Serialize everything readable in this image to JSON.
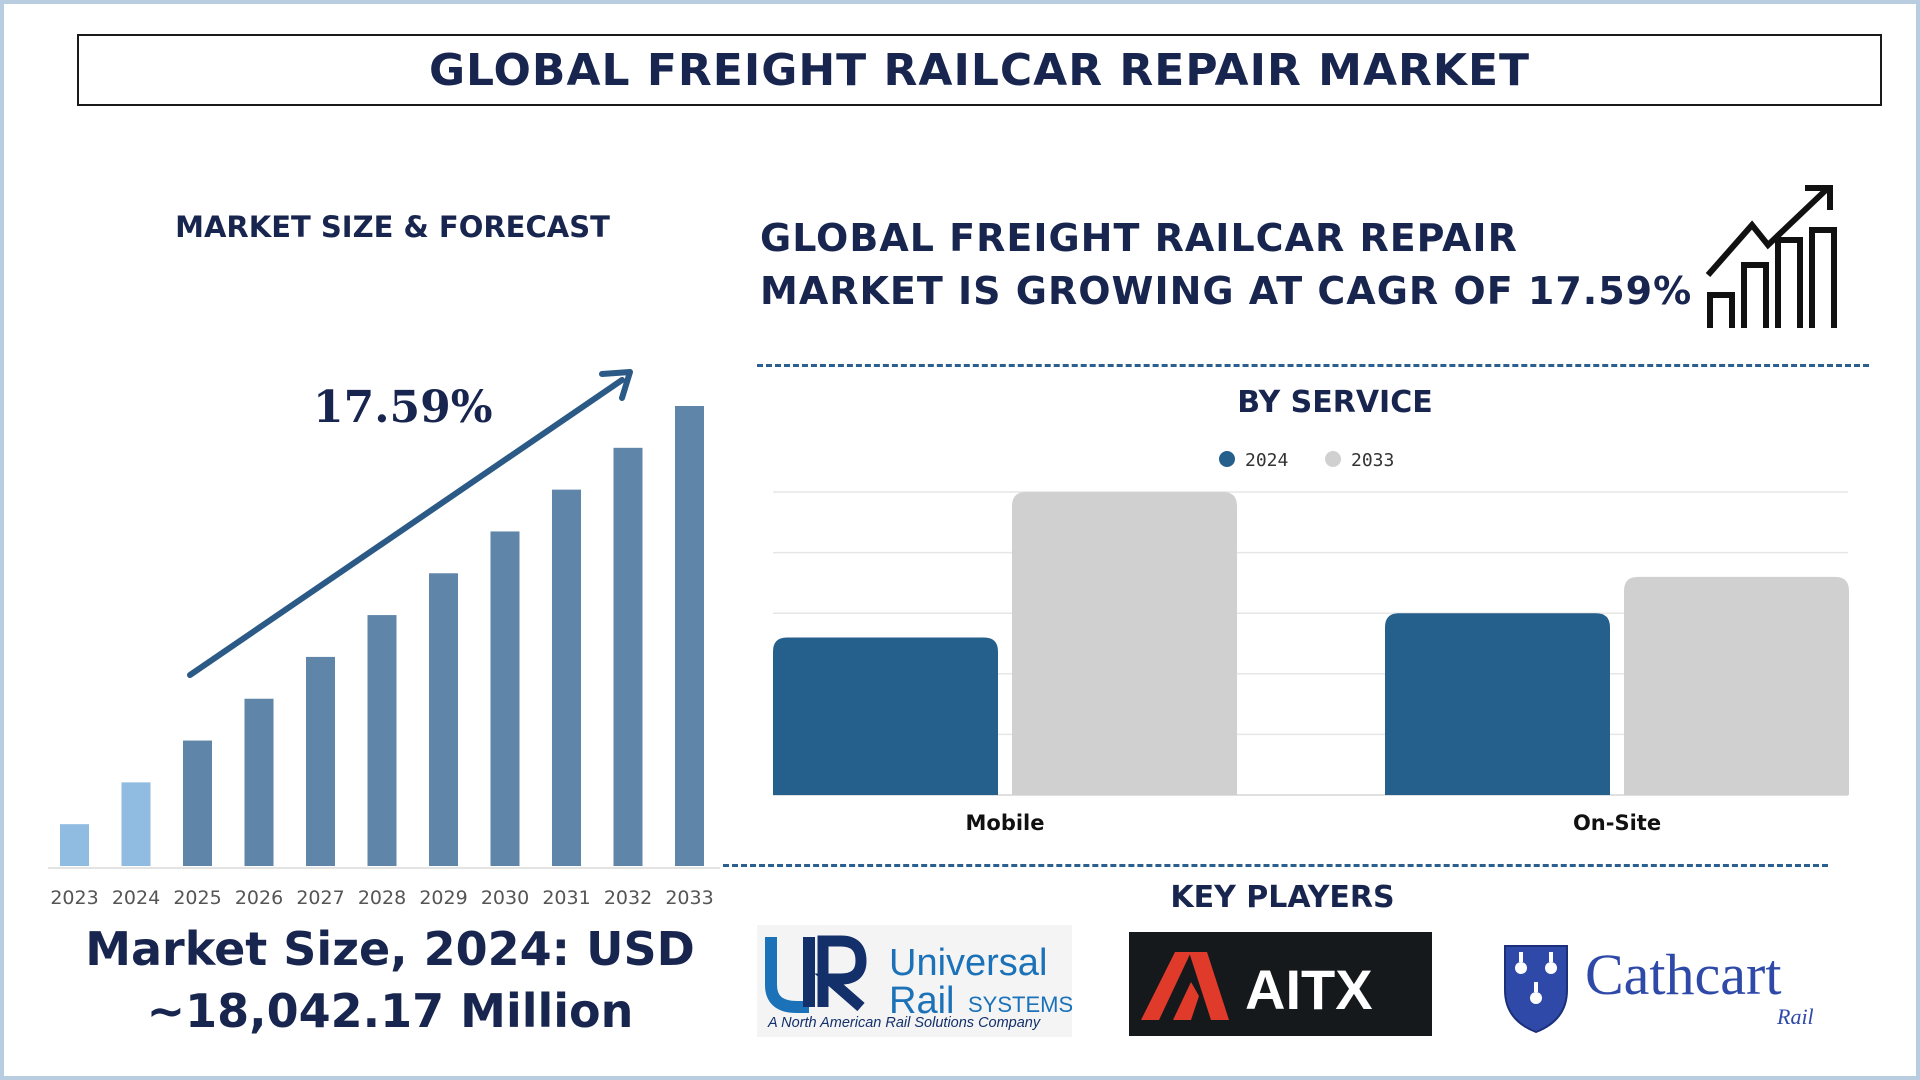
{
  "title": "GLOBAL FREIGHT RAILCAR REPAIR MARKET",
  "left_panel": {
    "heading": "MARKET SIZE & FORECAST",
    "cagr_label": "17.59%",
    "market_size_line1": "Market Size, 2024: USD",
    "market_size_line2": "~18,042.17 Million"
  },
  "right_panel": {
    "cagr_line1": "GLOBAL FREIGHT RAILCAR REPAIR",
    "cagr_line2": "MARKET IS GROWING AT CAGR OF 17.59%",
    "service_heading": "BY SERVICE",
    "key_players_heading": "KEY PLAYERS"
  },
  "key_players": {
    "universal": {
      "name1": "Universal",
      "name2": "Rail",
      "name3": "SYSTEMS",
      "tagline": "A North American Rail Solutions Company"
    },
    "aitx": {
      "name": "AITX"
    },
    "cathcart": {
      "name": "Cathcart",
      "sub": "Rail"
    }
  },
  "colors": {
    "navy": "#17254f",
    "bar_light": "#8fbce0",
    "bar_mid": "#5f85a8",
    "series_2024": "#255f8c",
    "series_2033": "#d0d0d0"
  },
  "chart_data": [
    {
      "type": "bar",
      "categories": [
        "2023",
        "2024",
        "2025",
        "2026",
        "2027",
        "2028",
        "2029",
        "2030",
        "2031",
        "2032",
        "2033"
      ],
      "values": [
        10,
        20,
        30,
        40,
        50,
        60,
        70,
        80,
        90,
        100,
        110
      ],
      "annotation": "17.59%"
    },
    {
      "type": "bar",
      "title": "BY SERVICE",
      "categories": [
        "Mobile",
        "On-Site"
      ],
      "series": [
        {
          "name": "2024",
          "values": [
            26,
            30
          ]
        },
        {
          "name": "2033",
          "values": [
            50,
            36
          ]
        }
      ],
      "ylim": [
        0,
        50
      ],
      "legend": "top-center",
      "grid": true
    }
  ]
}
